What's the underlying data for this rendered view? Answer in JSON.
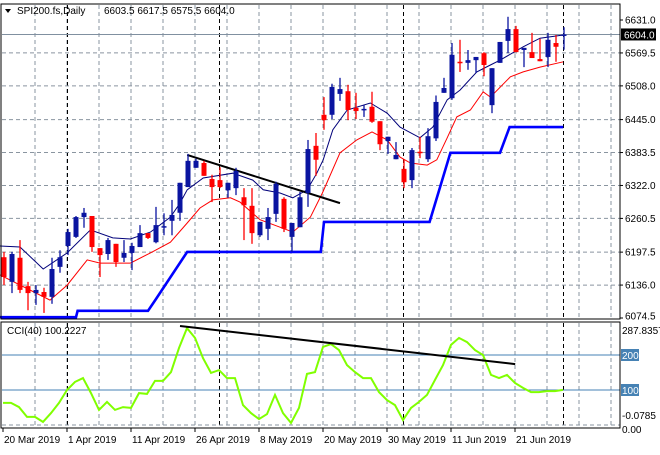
{
  "header": {
    "symbol": "SPI200.fs,Daily",
    "ohlc": "6603.5 6617.5 6575.5 6604.0"
  },
  "colors": {
    "bull": "#0a14a0",
    "bear": "#ff0000",
    "ma": "#00007a",
    "band": "#ff0000",
    "step": "#0000ff",
    "cci": "#80ff00",
    "level": "#4682b4",
    "trend": "#000000"
  },
  "chart_data": [
    {
      "type": "candlestick",
      "title": "SPI200.fs,Daily",
      "ylim": [
        6074.5,
        6631.0
      ],
      "yticks": [
        "6631.0",
        "6569.5",
        "6508.0",
        "6445.0",
        "6383.5",
        "6322.0",
        "6260.5",
        "6197.5",
        "6136.0",
        "6074.5"
      ],
      "ytick_values": [
        6631.0,
        6569.5,
        6508.0,
        6445.0,
        6383.5,
        6322.0,
        6260.5,
        6197.5,
        6136.0,
        6074.5
      ],
      "current_price": 6604.0,
      "current_price_label": "6604.0",
      "grid": true,
      "candles_ohlc": [
        [
          6188,
          6198,
          6136,
          6151
        ],
        [
          6142,
          6198,
          6121,
          6194
        ],
        [
          6187,
          6220,
          6121,
          6127
        ],
        [
          6134,
          6142,
          6089,
          6121
        ],
        [
          6121,
          6136,
          6099,
          6127
        ],
        [
          6123,
          6131,
          6084,
          6114
        ],
        [
          6114,
          6187,
          6101,
          6166
        ],
        [
          6170,
          6201,
          6159,
          6188
        ],
        [
          6209,
          6241,
          6192,
          6235
        ],
        [
          6226,
          6265,
          6224,
          6263
        ],
        [
          6263,
          6280,
          6243,
          6271
        ],
        [
          6265,
          6265,
          6198,
          6207
        ],
        [
          6205,
          6205,
          6151,
          6192
        ],
        [
          6194,
          6224,
          6183,
          6220
        ],
        [
          6213,
          6213,
          6170,
          6179
        ],
        [
          6187,
          6220,
          6179,
          6196
        ],
        [
          6196,
          6215,
          6164,
          6209
        ],
        [
          6207,
          6248,
          6207,
          6233
        ],
        [
          6233,
          6233,
          6222,
          6224
        ],
        [
          6216,
          6282,
          6214,
          6248
        ],
        [
          6244,
          6270,
          6229,
          6246
        ],
        [
          6256,
          6295,
          6229,
          6267
        ],
        [
          6271,
          6327,
          6256,
          6327
        ],
        [
          6319,
          6381,
          6319,
          6368
        ],
        [
          6355,
          6372,
          6355,
          6368
        ],
        [
          6364,
          6368,
          6340,
          6340
        ],
        [
          6334,
          6342,
          6291,
          6319
        ],
        [
          6332,
          6356,
          6317,
          6319
        ],
        [
          6313,
          6327,
          6299,
          6327
        ],
        [
          6317,
          6355,
          6304,
          6349
        ],
        [
          6300,
          6317,
          6220,
          6285
        ],
        [
          6284,
          6317,
          6213,
          6233
        ],
        [
          6229,
          6254,
          6226,
          6254
        ],
        [
          6241,
          6280,
          6220,
          6263
        ],
        [
          6269,
          6329,
          6254,
          6325
        ],
        [
          6297,
          6300,
          6235,
          6241
        ],
        [
          6226,
          6252,
          6198,
          6252
        ],
        [
          6244,
          6310,
          6244,
          6300
        ],
        [
          6308,
          6407,
          6282,
          6390
        ],
        [
          6396,
          6420,
          6340,
          6370
        ],
        [
          6454,
          6487,
          6426,
          6444
        ],
        [
          6454,
          6512,
          6446,
          6506
        ],
        [
          6493,
          6523,
          6480,
          6502
        ],
        [
          6498,
          6510,
          6444,
          6463
        ],
        [
          6467,
          6495,
          6446,
          6461
        ],
        [
          6463,
          6472,
          6450,
          6465
        ],
        [
          6469,
          6497,
          6439,
          6441
        ],
        [
          6442,
          6442,
          6388,
          6399
        ],
        [
          6405,
          6413,
          6381,
          6413
        ],
        [
          6371,
          6403,
          6371,
          6379
        ],
        [
          6353,
          6370,
          6317,
          6328
        ],
        [
          6332,
          6392,
          6317,
          6388
        ],
        [
          6385,
          6413,
          6373,
          6383
        ],
        [
          6371,
          6429,
          6366,
          6414
        ],
        [
          6410,
          6490,
          6405,
          6478
        ],
        [
          6495,
          6523,
          6495,
          6504
        ],
        [
          6485,
          6588,
          6482,
          6566
        ],
        [
          6553,
          6594,
          6534,
          6551
        ],
        [
          6551,
          6575,
          6538,
          6556
        ],
        [
          6556,
          6562,
          6532,
          6562
        ],
        [
          6569,
          6571,
          6526,
          6547
        ],
        [
          6472,
          6541,
          6457,
          6541
        ],
        [
          6551,
          6590,
          6551,
          6590
        ],
        [
          6592,
          6637,
          6569,
          6614
        ],
        [
          6614,
          6620,
          6571,
          6571
        ],
        [
          6575,
          6579,
          6543,
          6579
        ],
        [
          6571,
          6607,
          6560,
          6560
        ],
        [
          6558,
          6596,
          6554,
          6554
        ],
        [
          6562,
          6607,
          6543,
          6594
        ],
        [
          6588,
          6603,
          6553,
          6581
        ],
        [
          6603.5,
          6617.5,
          6575.5,
          6604.0
        ]
      ],
      "overlays": [
        {
          "name": "moving-average",
          "points": [
            [
              -0.5,
              6209
            ],
            [
              2,
              6207
            ],
            [
              4.9,
              6166
            ],
            [
              7.9,
              6196
            ],
            [
              10.8,
              6239
            ],
            [
              13.6,
              6224
            ],
            [
              15.8,
              6222
            ],
            [
              18.3,
              6235
            ],
            [
              20.8,
              6263
            ],
            [
              22,
              6289
            ],
            [
              22.9,
              6314
            ],
            [
              24.9,
              6336
            ],
            [
              28.6,
              6345
            ],
            [
              31.1,
              6332
            ],
            [
              32.4,
              6314
            ],
            [
              34.5,
              6308
            ],
            [
              36.1,
              6299
            ],
            [
              37.9,
              6314
            ],
            [
              39.1,
              6345
            ],
            [
              39.9,
              6370
            ],
            [
              41.1,
              6426
            ],
            [
              42.9,
              6463
            ],
            [
              45.8,
              6476
            ],
            [
              47.9,
              6457
            ],
            [
              49.5,
              6431
            ],
            [
              52,
              6411
            ],
            [
              53.6,
              6431
            ],
            [
              55.4,
              6482
            ],
            [
              57,
              6500
            ],
            [
              59.1,
              6534
            ],
            [
              60.8,
              6547
            ],
            [
              62,
              6556
            ],
            [
              64.9,
              6581
            ],
            [
              67,
              6597
            ],
            [
              69.9,
              6603
            ]
          ]
        },
        {
          "name": "lower-band",
          "points": [
            [
              -0.5,
              6155
            ],
            [
              5.75,
              6108
            ],
            [
              7.9,
              6136
            ],
            [
              10.4,
              6183
            ],
            [
              12,
              6177
            ],
            [
              15.8,
              6177
            ],
            [
              18.3,
              6196
            ],
            [
              20.8,
              6216
            ],
            [
              22.9,
              6252
            ],
            [
              24.5,
              6280
            ],
            [
              26.1,
              6295
            ],
            [
              28.3,
              6299
            ],
            [
              29.5,
              6291
            ],
            [
              32,
              6258
            ],
            [
              34.5,
              6244
            ],
            [
              36.1,
              6235
            ],
            [
              38.3,
              6263
            ],
            [
              39.8,
              6308
            ],
            [
              42,
              6383
            ],
            [
              44.1,
              6407
            ],
            [
              46,
              6422
            ],
            [
              47.9,
              6407
            ],
            [
              49.5,
              6375
            ],
            [
              50.8,
              6364
            ],
            [
              52.9,
              6360
            ],
            [
              54.1,
              6370
            ],
            [
              55.4,
              6411
            ],
            [
              56.6,
              6450
            ],
            [
              58.3,
              6463
            ],
            [
              59.9,
              6497
            ],
            [
              60.8,
              6487
            ],
            [
              63.3,
              6525
            ],
            [
              64.9,
              6534
            ],
            [
              67,
              6543
            ],
            [
              69.9,
              6553
            ]
          ]
        },
        {
          "name": "step-support",
          "points": [
            [
              -0.5,
              6076
            ],
            [
              9,
              6076
            ],
            [
              9.2,
              6088
            ],
            [
              18,
              6088
            ],
            [
              19,
              6110
            ],
            [
              22.9,
              6198
            ],
            [
              39.6,
              6198
            ],
            [
              40,
              6254
            ],
            [
              53.2,
              6254
            ],
            [
              55.8,
              6383
            ],
            [
              62,
              6383
            ],
            [
              63.2,
              6431
            ],
            [
              69.9,
              6431
            ]
          ]
        }
      ],
      "trendline": [
        [
          22.9,
          6379
        ],
        [
          42,
          6289
        ]
      ]
    },
    {
      "type": "line",
      "title": "CCI(40) 100.2227",
      "ylim": [
        -0.0785,
        287.8357
      ],
      "ytick_labels": {
        "top": "287.8357",
        "bottom": "-0.0785",
        "zero": "0.00"
      },
      "levels": [
        {
          "value": 200,
          "label": "200"
        },
        {
          "value": 100,
          "label": "100"
        }
      ],
      "values": [
        63,
        63,
        51,
        23,
        23,
        9,
        34,
        63,
        100,
        123,
        134,
        91,
        43,
        66,
        43,
        51,
        49,
        91,
        89,
        126,
        126,
        151,
        220,
        277,
        249,
        191,
        149,
        157,
        134,
        134,
        57,
        34,
        17,
        31,
        86,
        34,
        6,
        49,
        146,
        151,
        223,
        231,
        214,
        171,
        151,
        134,
        134,
        94,
        71,
        57,
        14,
        49,
        66,
        86,
        129,
        171,
        229,
        249,
        237,
        214,
        200,
        143,
        134,
        143,
        120,
        106,
        94,
        94,
        97,
        97,
        100.2227
      ],
      "trendline": [
        [
          22,
          283
        ],
        [
          63.9,
          174
        ]
      ]
    }
  ],
  "xaxis": {
    "labels": [
      {
        "text": "20 Mar 2019",
        "index": 0
      },
      {
        "text": "1 Apr 2019",
        "index": 8
      },
      {
        "text": "11 Apr 2019",
        "index": 16
      },
      {
        "text": "26 Apr 2019",
        "index": 24
      },
      {
        "text": "8 May 2019",
        "index": 32
      },
      {
        "text": "20 May 2019",
        "index": 40
      },
      {
        "text": "30 May 2019",
        "index": 48
      },
      {
        "text": "11 Jun 2019",
        "index": 56
      },
      {
        "text": "21 Jun 2019",
        "index": 64
      }
    ],
    "separators": [
      8,
      27,
      50,
      70
    ]
  }
}
